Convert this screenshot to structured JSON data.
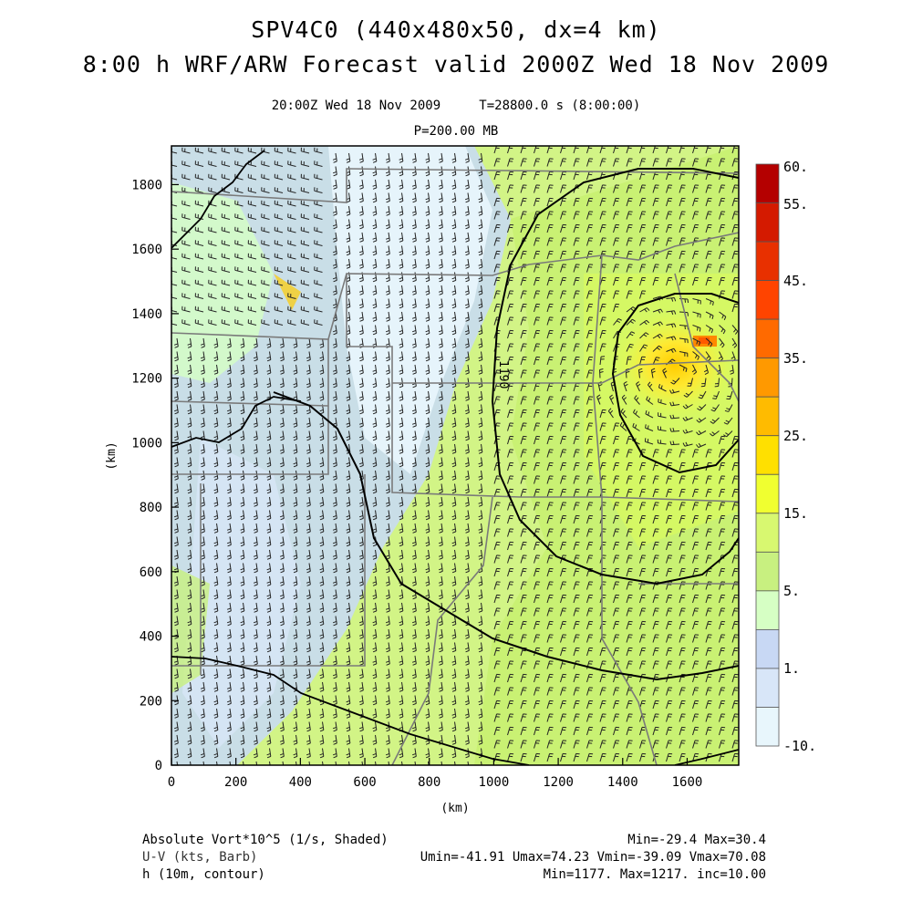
{
  "title": {
    "line1": "SPV4C0 (440x480x50, dx=4 km)",
    "line2": "8:00 h WRF/ARW Forecast valid 2000Z Wed 18 Nov 2009",
    "valid_time": "20:00Z Wed 18 Nov 2009",
    "time_step": "T=28800.0 s (8:00:00)",
    "level": "P=200.00 MB"
  },
  "axes": {
    "x_label": "(km)",
    "y_label": "(km)",
    "x_ticks": [
      "0",
      "200",
      "400",
      "600",
      "800",
      "1000",
      "1200",
      "1400",
      "1600"
    ],
    "y_ticks": [
      "0",
      "200",
      "400",
      "600",
      "800",
      "1000",
      "1200",
      "1400",
      "1600",
      "1800"
    ],
    "x_range_km": [
      0,
      1760
    ],
    "y_range_km": [
      0,
      1920
    ]
  },
  "colorbar": {
    "labels": [
      "60.",
      "55.",
      "45.",
      "35.",
      "25.",
      "15.",
      "5.",
      "1.",
      "-10."
    ],
    "colors": [
      "#b40000",
      "#d41a00",
      "#e83000",
      "#ff4400",
      "#ff6a00",
      "#ff9900",
      "#ffbb00",
      "#ffe000",
      "#f0ff30",
      "#d8f870",
      "#c8f080",
      "#d6ffc4",
      "#c8d8f4",
      "#d8e6f8",
      "#e8f6fc"
    ]
  },
  "contour_label": "1190",
  "legend": {
    "field1_name": "Absolute Vort*10^5 (1/s, Shaded)",
    "field1_stats": "Min=-29.4 Max=30.4",
    "field2_name": "U-V (kts, Barb)",
    "field2_stats": "Umin=-41.91 Umax=74.23 Vmin=-39.09 Vmax=70.08",
    "field3_name": "h (10m, contour)",
    "field3_stats": "Min=1177. Max=1217. inc=10.00"
  }
}
